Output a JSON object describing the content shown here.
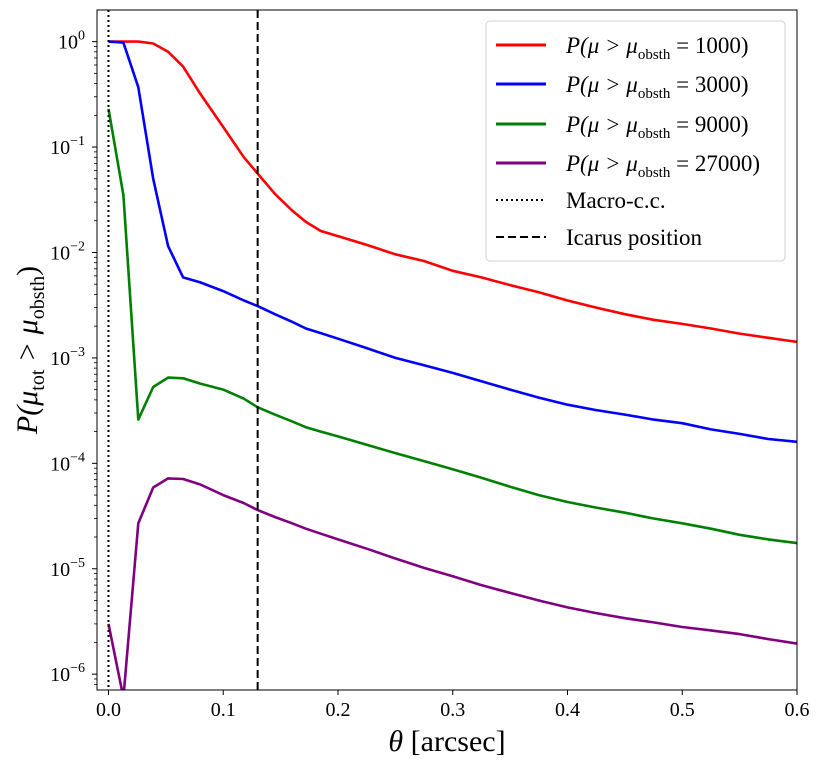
{
  "chart_data": {
    "type": "line",
    "title": "",
    "xlabel": "θ [arcsec]",
    "ylabel": "P(μtot > μobsth)",
    "xlim": [
      -0.01,
      0.6
    ],
    "ylim_log10": [
      -6.15,
      0.3
    ],
    "yscale": "log",
    "legend_position": "top-right",
    "x_ticks": [
      {
        "value": 0.0,
        "label": "0.0"
      },
      {
        "value": 0.1,
        "label": "0.1"
      },
      {
        "value": 0.2,
        "label": "0.2"
      },
      {
        "value": 0.3,
        "label": "0.3"
      },
      {
        "value": 0.4,
        "label": "0.4"
      },
      {
        "value": 0.5,
        "label": "0.5"
      },
      {
        "value": 0.6,
        "label": "0.6"
      }
    ],
    "y_ticks": [
      {
        "exp": 0,
        "base": "10",
        "sup": "0"
      },
      {
        "exp": -1,
        "base": "10",
        "sup": "−1"
      },
      {
        "exp": -2,
        "base": "10",
        "sup": "−2"
      },
      {
        "exp": -3,
        "base": "10",
        "sup": "−3"
      },
      {
        "exp": -4,
        "base": "10",
        "sup": "−4"
      },
      {
        "exp": -5,
        "base": "10",
        "sup": "−5"
      },
      {
        "exp": -6,
        "base": "10",
        "sup": "−6"
      }
    ],
    "series": [
      {
        "name": "P(μ > μobsth = 1000)",
        "threshold": "1000",
        "color": "#ff0000",
        "x": [
          0.0,
          0.013,
          0.026,
          0.039,
          0.052,
          0.065,
          0.08,
          0.1,
          0.118,
          0.13,
          0.145,
          0.16,
          0.172,
          0.185,
          0.2,
          0.225,
          0.25,
          0.275,
          0.3,
          0.325,
          0.35,
          0.375,
          0.4,
          0.425,
          0.45,
          0.475,
          0.5,
          0.525,
          0.55,
          0.575,
          0.6
        ],
        "y": [
          1.0,
          1.0,
          1.0,
          0.96,
          0.8,
          0.58,
          0.32,
          0.155,
          0.08,
          0.056,
          0.036,
          0.025,
          0.0195,
          0.016,
          0.0143,
          0.0118,
          0.0096,
          0.0083,
          0.0067,
          0.0058,
          0.0049,
          0.0042,
          0.0035,
          0.003,
          0.0026,
          0.0023,
          0.0021,
          0.0019,
          0.0017,
          0.00155,
          0.00142
        ]
      },
      {
        "name": "P(μ > μobsth = 3000)",
        "threshold": "3000",
        "color": "#0000ff",
        "x": [
          0.0,
          0.013,
          0.026,
          0.039,
          0.052,
          0.065,
          0.08,
          0.1,
          0.118,
          0.13,
          0.145,
          0.16,
          0.172,
          0.185,
          0.2,
          0.225,
          0.25,
          0.275,
          0.3,
          0.325,
          0.35,
          0.375,
          0.4,
          0.425,
          0.45,
          0.475,
          0.5,
          0.525,
          0.55,
          0.575,
          0.6
        ],
        "y": [
          1.0,
          0.98,
          0.37,
          0.05,
          0.0115,
          0.0058,
          0.0052,
          0.0043,
          0.0035,
          0.0031,
          0.0026,
          0.0022,
          0.0019,
          0.00172,
          0.00152,
          0.00124,
          0.001,
          0.00085,
          0.00072,
          0.0006,
          0.0005,
          0.00042,
          0.00036,
          0.00032,
          0.00029,
          0.00026,
          0.00024,
          0.00021,
          0.00019,
          0.00017,
          0.00016
        ]
      },
      {
        "name": "P(μ > μobsth = 9000)",
        "threshold": "9000",
        "color": "#008000",
        "x": [
          0.0,
          0.013,
          0.026,
          0.039,
          0.052,
          0.065,
          0.08,
          0.1,
          0.118,
          0.13,
          0.145,
          0.16,
          0.172,
          0.185,
          0.2,
          0.225,
          0.25,
          0.275,
          0.3,
          0.325,
          0.35,
          0.375,
          0.4,
          0.425,
          0.45,
          0.475,
          0.5,
          0.525,
          0.55,
          0.575,
          0.6
        ],
        "y": [
          0.23,
          0.035,
          0.00026,
          0.00053,
          0.00065,
          0.00064,
          0.00057,
          0.0005,
          0.00041,
          0.00034,
          0.00029,
          0.00025,
          0.00022,
          0.0002,
          0.00018,
          0.00015,
          0.000125,
          0.000105,
          8.8e-05,
          7.3e-05,
          6e-05,
          5e-05,
          4.3e-05,
          3.8e-05,
          3.4e-05,
          3e-05,
          2.7e-05,
          2.4e-05,
          2.1e-05,
          1.9e-05,
          1.75e-05
        ]
      },
      {
        "name": "P(μ > μobsth = 27000)",
        "threshold": "27000",
        "color": "#800080",
        "x": [
          0.0,
          0.013,
          0.026,
          0.039,
          0.052,
          0.065,
          0.08,
          0.1,
          0.118,
          0.13,
          0.145,
          0.16,
          0.172,
          0.185,
          0.2,
          0.225,
          0.25,
          0.275,
          0.3,
          0.325,
          0.35,
          0.375,
          0.4,
          0.425,
          0.45,
          0.475,
          0.5,
          0.525,
          0.55,
          0.575,
          0.6
        ],
        "y": [
          3e-06,
          6e-07,
          2.7e-05,
          5.9e-05,
          7.2e-05,
          7.1e-05,
          6.3e-05,
          5e-05,
          4.2e-05,
          3.6e-05,
          3.1e-05,
          2.7e-05,
          2.4e-05,
          2.15e-05,
          1.9e-05,
          1.55e-05,
          1.25e-05,
          1.02e-05,
          8.5e-06,
          7e-06,
          5.9e-06,
          5e-06,
          4.3e-06,
          3.8e-06,
          3.4e-06,
          3.1e-06,
          2.8e-06,
          2.6e-06,
          2.4e-06,
          2.15e-06,
          1.95e-06
        ]
      }
    ],
    "vlines": [
      {
        "name": "Macro-c.c.",
        "x": 0.0,
        "style": "dotted",
        "color": "#000000"
      },
      {
        "name": "Icarus position",
        "x": 0.13,
        "style": "dashed",
        "color": "#000000"
      }
    ]
  },
  "legend": {
    "prefix": "P(μ > μ",
    "sub": "obsth",
    "eq": " = ",
    "close": ")",
    "macro_label": "Macro-c.c.",
    "icarus_label": "Icarus position"
  },
  "axes": {
    "xlabel_theta": "θ",
    "xlabel_unit": " [arcsec]",
    "ylabel_P": "P(μ",
    "ylabel_tot": "tot",
    "ylabel_gt": " > μ",
    "ylabel_obsth": "obsth",
    "ylabel_close": ")"
  }
}
